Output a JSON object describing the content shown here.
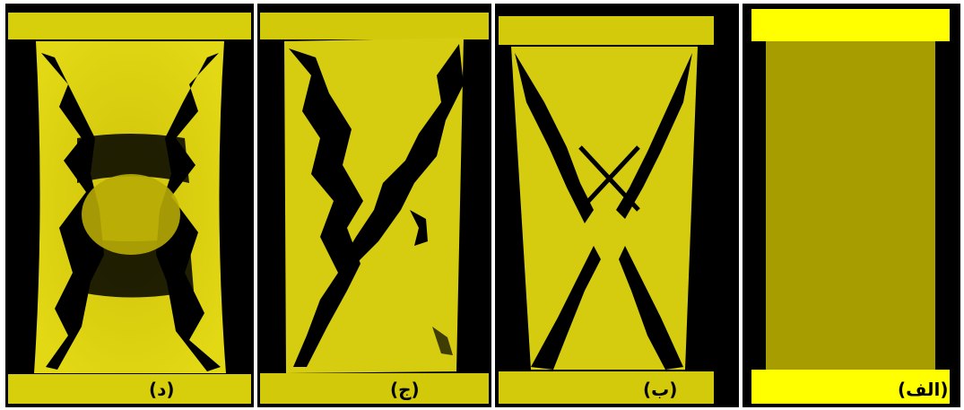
{
  "figure": {
    "panels": [
      {
        "id": "d",
        "label": "(د)"
      },
      {
        "id": "j",
        "label": "(ج)"
      },
      {
        "id": "b",
        "label": "(ب)"
      },
      {
        "id": "alef",
        "label": "(الف)"
      }
    ]
  },
  "colors": {
    "background": "#000000",
    "platen_bright": "#ffff00",
    "specimen_intact": "#a89d00",
    "specimen_stressed": "#d7cf0c",
    "crack": "#000000"
  }
}
